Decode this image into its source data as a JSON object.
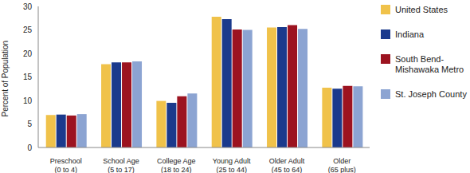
{
  "chart_data": {
    "type": "bar",
    "y_label": "Percent of Population",
    "categories": [
      "Preschool\n(0 to 4)",
      "School Age\n(5 to 17)",
      "College Age\n(18 to 24)",
      "Young Adult\n(25 to 44)",
      "Older Adult\n(45 to 64)",
      "Older\n(65 plus)"
    ],
    "series": [
      {
        "name": "United States",
        "color": "#f0c24a",
        "values": [
          6.9,
          17.7,
          9.9,
          27.8,
          25.5,
          12.7
        ]
      },
      {
        "name": "Indiana",
        "color": "#1b3a8c",
        "values": [
          7.0,
          18.1,
          9.5,
          27.3,
          25.6,
          12.5
        ]
      },
      {
        "name": "South Bend-Mishawaka Metro",
        "color": "#9c1320",
        "values": [
          6.8,
          18.1,
          10.9,
          25.1,
          26.0,
          13.1
        ]
      },
      {
        "name": "St. Joseph County",
        "color": "#8ca4d2",
        "values": [
          7.1,
          18.3,
          11.5,
          25.0,
          25.2,
          13.0
        ]
      }
    ],
    "ylim": [
      0,
      30
    ],
    "yticks": [
      0,
      5,
      10,
      15,
      20,
      25,
      30
    ],
    "grid": false,
    "legend": "right"
  }
}
